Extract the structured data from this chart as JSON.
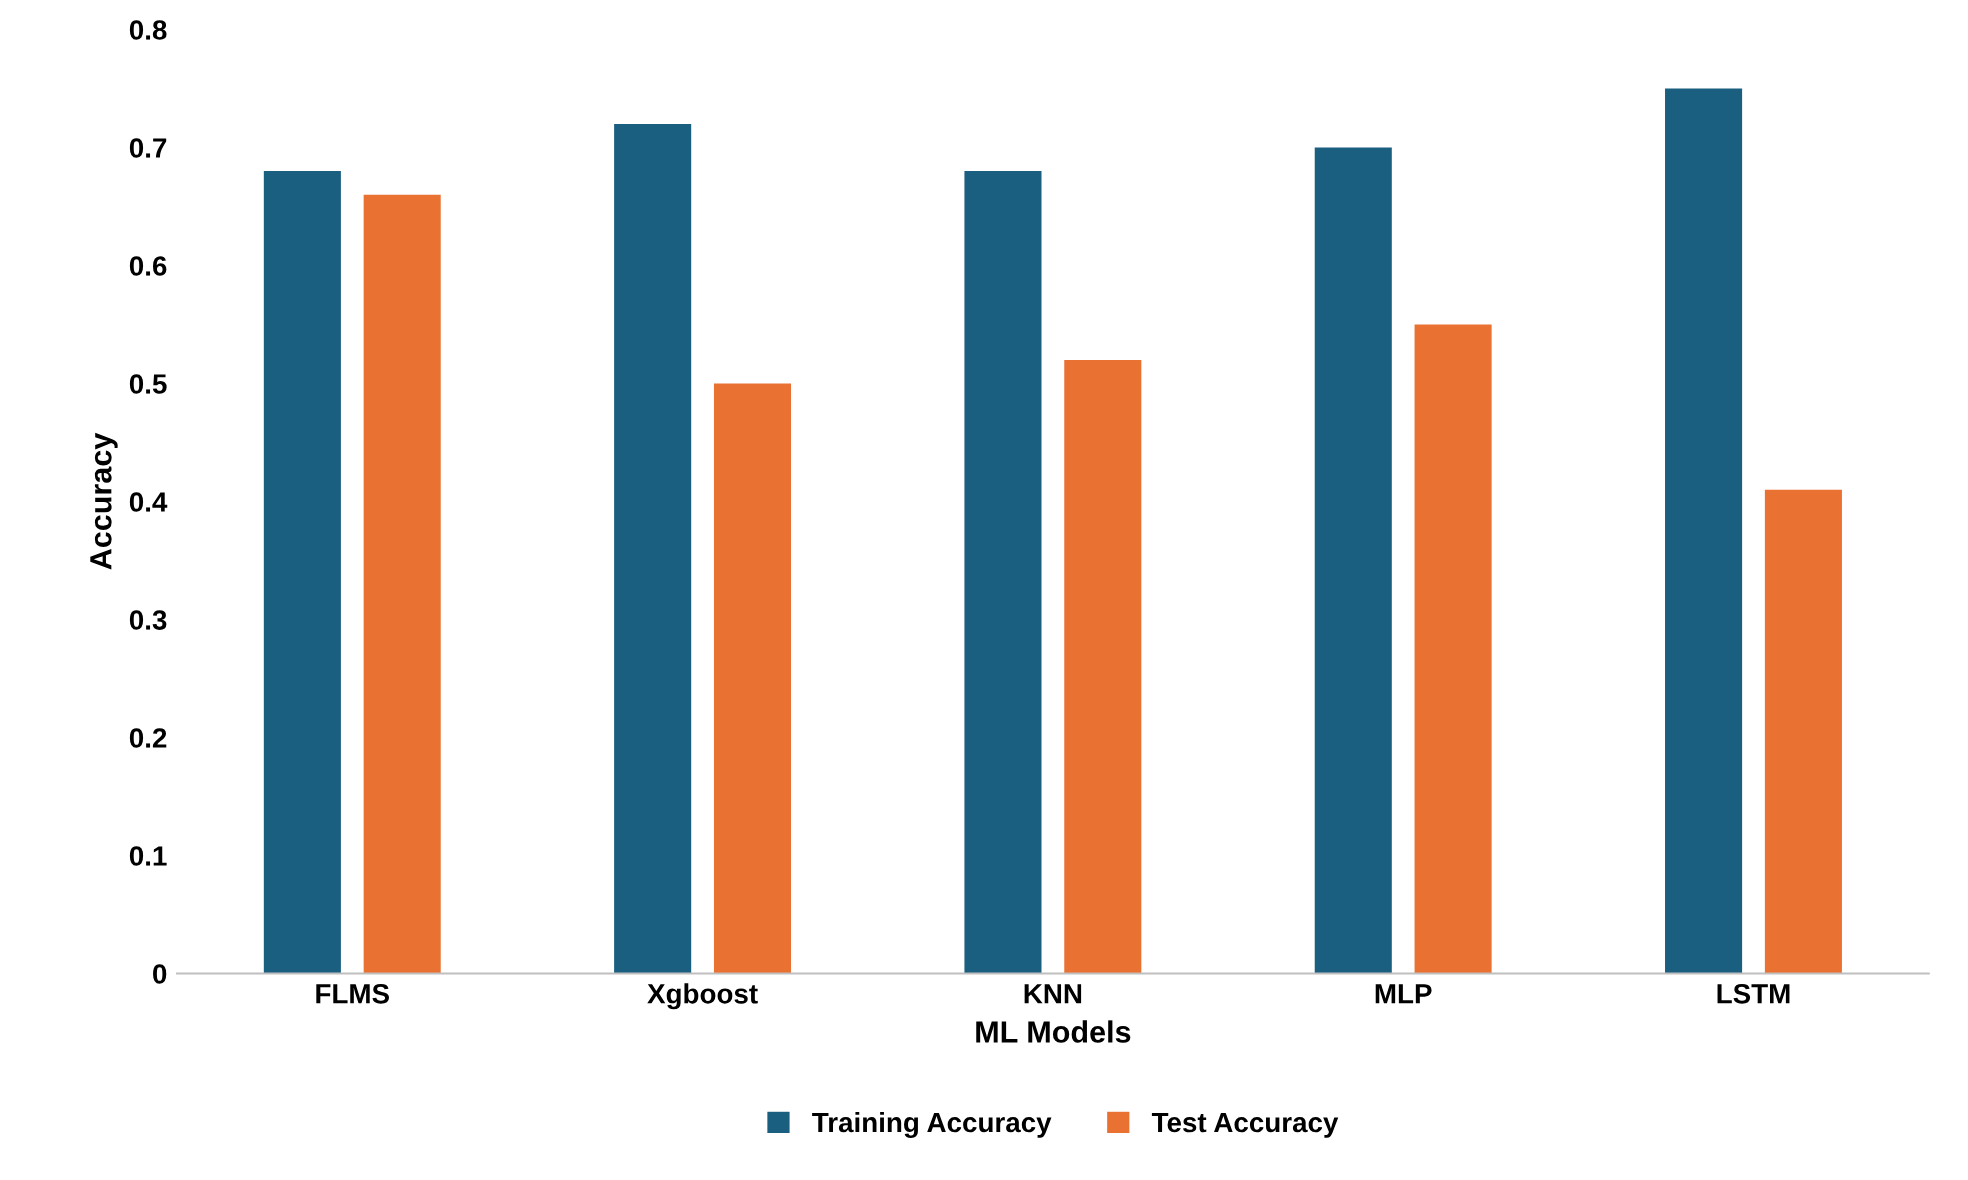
{
  "chart_data": {
    "type": "bar",
    "xlabel": "ML Models",
    "ylabel": "Accuracy",
    "categories": [
      "FLMS",
      "Xgboost",
      "KNN",
      "MLP",
      "LSTM"
    ],
    "series": [
      {
        "name": "Training Accuracy",
        "color": "#1a5e80",
        "values": [
          0.68,
          0.72,
          0.68,
          0.7,
          0.75
        ]
      },
      {
        "name": "Test Accuracy",
        "color": "#e97132",
        "values": [
          0.66,
          0.5,
          0.52,
          0.55,
          0.41
        ]
      }
    ],
    "ylim": [
      0,
      0.8
    ],
    "yticks": [
      0,
      0.1,
      0.2,
      0.3,
      0.4,
      0.5,
      0.6,
      0.7,
      0.8
    ],
    "grid": false,
    "legend": "bottom"
  }
}
